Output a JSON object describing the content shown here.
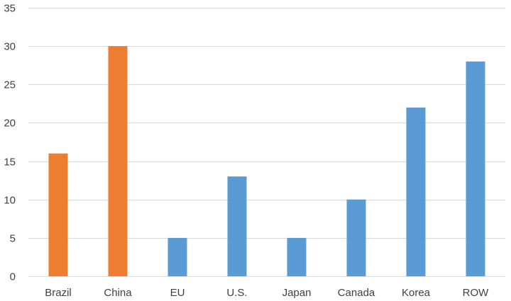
{
  "chart_data": {
    "type": "bar",
    "title": "",
    "xlabel": "",
    "ylabel": "",
    "categories": [
      "Brazil",
      "China",
      "EU",
      "U.S.",
      "Japan",
      "Canada",
      "Korea",
      "ROW"
    ],
    "values": [
      16,
      30,
      5,
      13,
      5,
      10,
      22,
      28
    ],
    "colors": [
      "#ED7D31",
      "#ED7D31",
      "#5B9BD5",
      "#5B9BD5",
      "#5B9BD5",
      "#5B9BD5",
      "#5B9BD5",
      "#5B9BD5"
    ],
    "ylim": [
      0,
      35
    ],
    "yticks": [
      "0",
      "5",
      "10",
      "15",
      "20",
      "25",
      "30",
      "35"
    ],
    "grid": true,
    "legend": "none"
  }
}
